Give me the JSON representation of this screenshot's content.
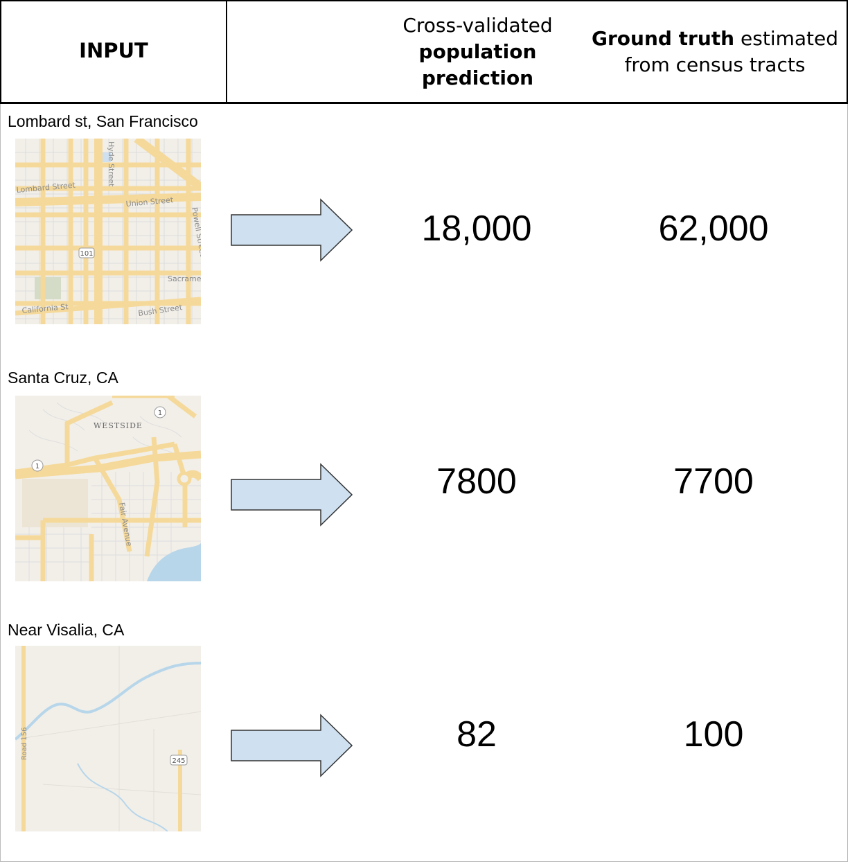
{
  "header": {
    "input": "INPUT",
    "prediction_line1": "Cross-validated",
    "prediction_line2": "population",
    "prediction_line3": "prediction",
    "ground_truth_bold": "Ground truth",
    "ground_truth_rest": " estimated",
    "ground_truth_line2": "from census tracts"
  },
  "rows": [
    {
      "label": "Lombard st, San Francisco",
      "prediction": "18,000",
      "ground_truth": "62,000",
      "map_labels": {
        "a": "Lombard Street",
        "b": "Union Street",
        "c": "Hyde Street",
        "d": "Powell Street",
        "e": "Sacrame",
        "f": "California St",
        "g": "Bush Street",
        "h": "101"
      }
    },
    {
      "label": "Santa Cruz, CA",
      "prediction": "7800",
      "ground_truth": "7700",
      "map_labels": {
        "a": "WESTSIDE",
        "b": "Fair Avenue",
        "c": "1",
        "d": "1"
      }
    },
    {
      "label": "Near Visalia, CA",
      "prediction": "82",
      "ground_truth": "100",
      "map_labels": {
        "a": "Road 156",
        "b": "245"
      }
    }
  ],
  "colors": {
    "arrow_fill": "#cfe0f0",
    "road": "#f5d99a",
    "map_bg": "#f2efe9",
    "water": "#b7d6ea"
  }
}
